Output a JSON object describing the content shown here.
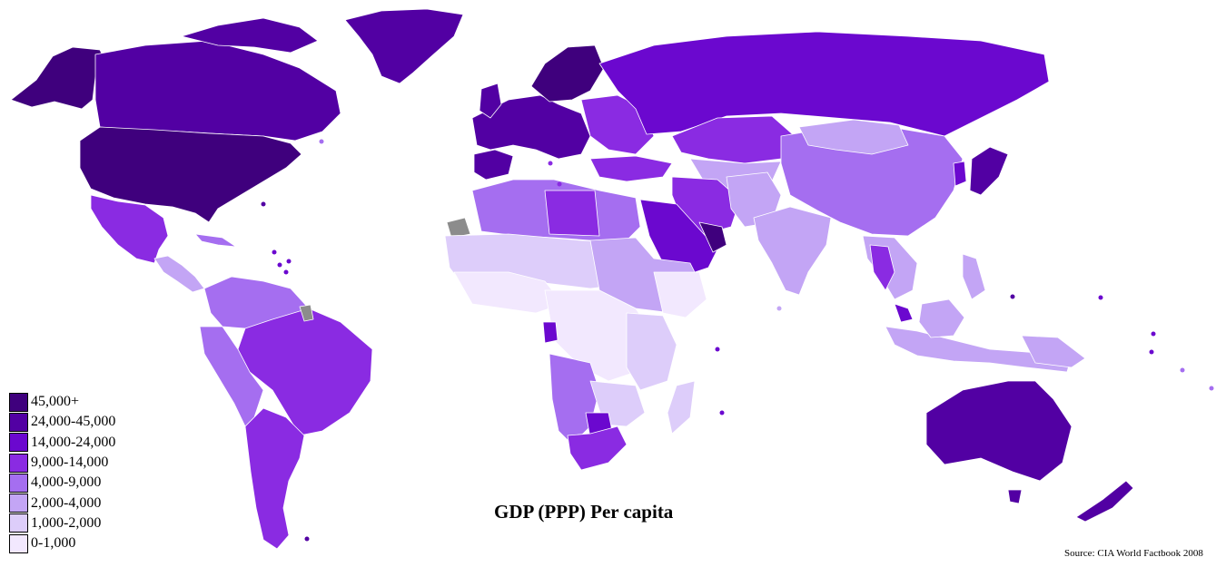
{
  "title": "GDP (PPP) Per capita",
  "source": "Source: CIA World Factbook 2008",
  "legend": [
    {
      "label": "45,000+",
      "color": "#3f007d"
    },
    {
      "label": "24,000-45,000",
      "color": "#5200a3"
    },
    {
      "label": "14,000-24,000",
      "color": "#6b08cf"
    },
    {
      "label": "9,000-14,000",
      "color": "#8a2be2"
    },
    {
      "label": "4,000-9,000",
      "color": "#a56ef0"
    },
    {
      "label": "2,000-4,000",
      "color": "#c3a5f5"
    },
    {
      "label": "1,000-2,000",
      "color": "#ddcdfa"
    },
    {
      "label": "0-1,000",
      "color": "#f2e8fe"
    }
  ],
  "no_data_color": "#8c8c8c"
}
